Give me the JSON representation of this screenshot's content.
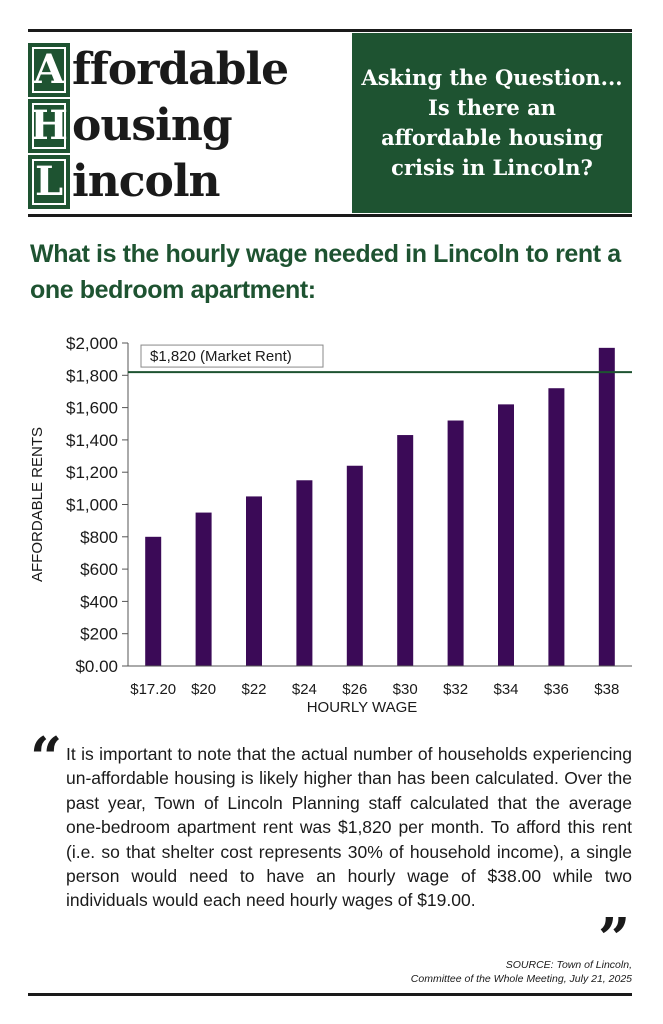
{
  "header": {
    "logo": [
      {
        "letter": "A",
        "rest": "ffordable"
      },
      {
        "letter": "H",
        "rest": "ousing"
      },
      {
        "letter": "L",
        "rest": "incoln"
      }
    ],
    "banner_lines": [
      "Asking the Question...",
      "Is there an",
      "affordable housing",
      "crisis in Lincoln?"
    ]
  },
  "question": "What is the hourly wage needed in Lincoln to rent a one bedroom apartment:",
  "chart_data": {
    "type": "bar",
    "categories": [
      "$17.20",
      "$20",
      "$22",
      "$24",
      "$26",
      "$30",
      "$32",
      "$34",
      "$36",
      "$38"
    ],
    "values": [
      800,
      950,
      1050,
      1150,
      1240,
      1430,
      1520,
      1620,
      1720,
      1970
    ],
    "ylim": [
      0,
      2000
    ],
    "yticks": [
      0,
      200,
      400,
      600,
      800,
      1000,
      1200,
      1400,
      1600,
      1800,
      2000
    ],
    "ytick_labels": [
      "$0.00",
      "$200",
      "$400",
      "$600",
      "$800",
      "$1,000",
      "$1,200",
      "$1,400",
      "$1,600",
      "$1,800",
      "$2,000"
    ],
    "xlabel": "HOURLY WAGE",
    "ylabel": "AFFORDABLE RENTS",
    "reference_line": {
      "value": 1820,
      "label": "$1,820 (Market Rent)"
    },
    "bar_color": "#3b0a57",
    "line_color": "#1e5331",
    "grid": false
  },
  "quote": {
    "open_mark": "“",
    "close_mark": "”",
    "text": "It is important to note that the actual number of households experiencing un-affordable housing is likely higher than has been calculated. Over the past year, Town of Lincoln Planning staff calculated that the average one-bedroom apartment rent was $1,820 per month. To afford this rent (i.e. so that shelter cost represents 30% of household income), a single person would need to have an hourly wage of $38.00 while two individuals would each need hourly wages of $19.00."
  },
  "source": {
    "line1": "SOURCE: Town of Lincoln,",
    "line2": "Committee of the Whole Meeting, July 21, 2025"
  },
  "colors": {
    "brand_green": "#1e5331",
    "bar_purple": "#3b0a57",
    "text": "#1a1a1a"
  }
}
